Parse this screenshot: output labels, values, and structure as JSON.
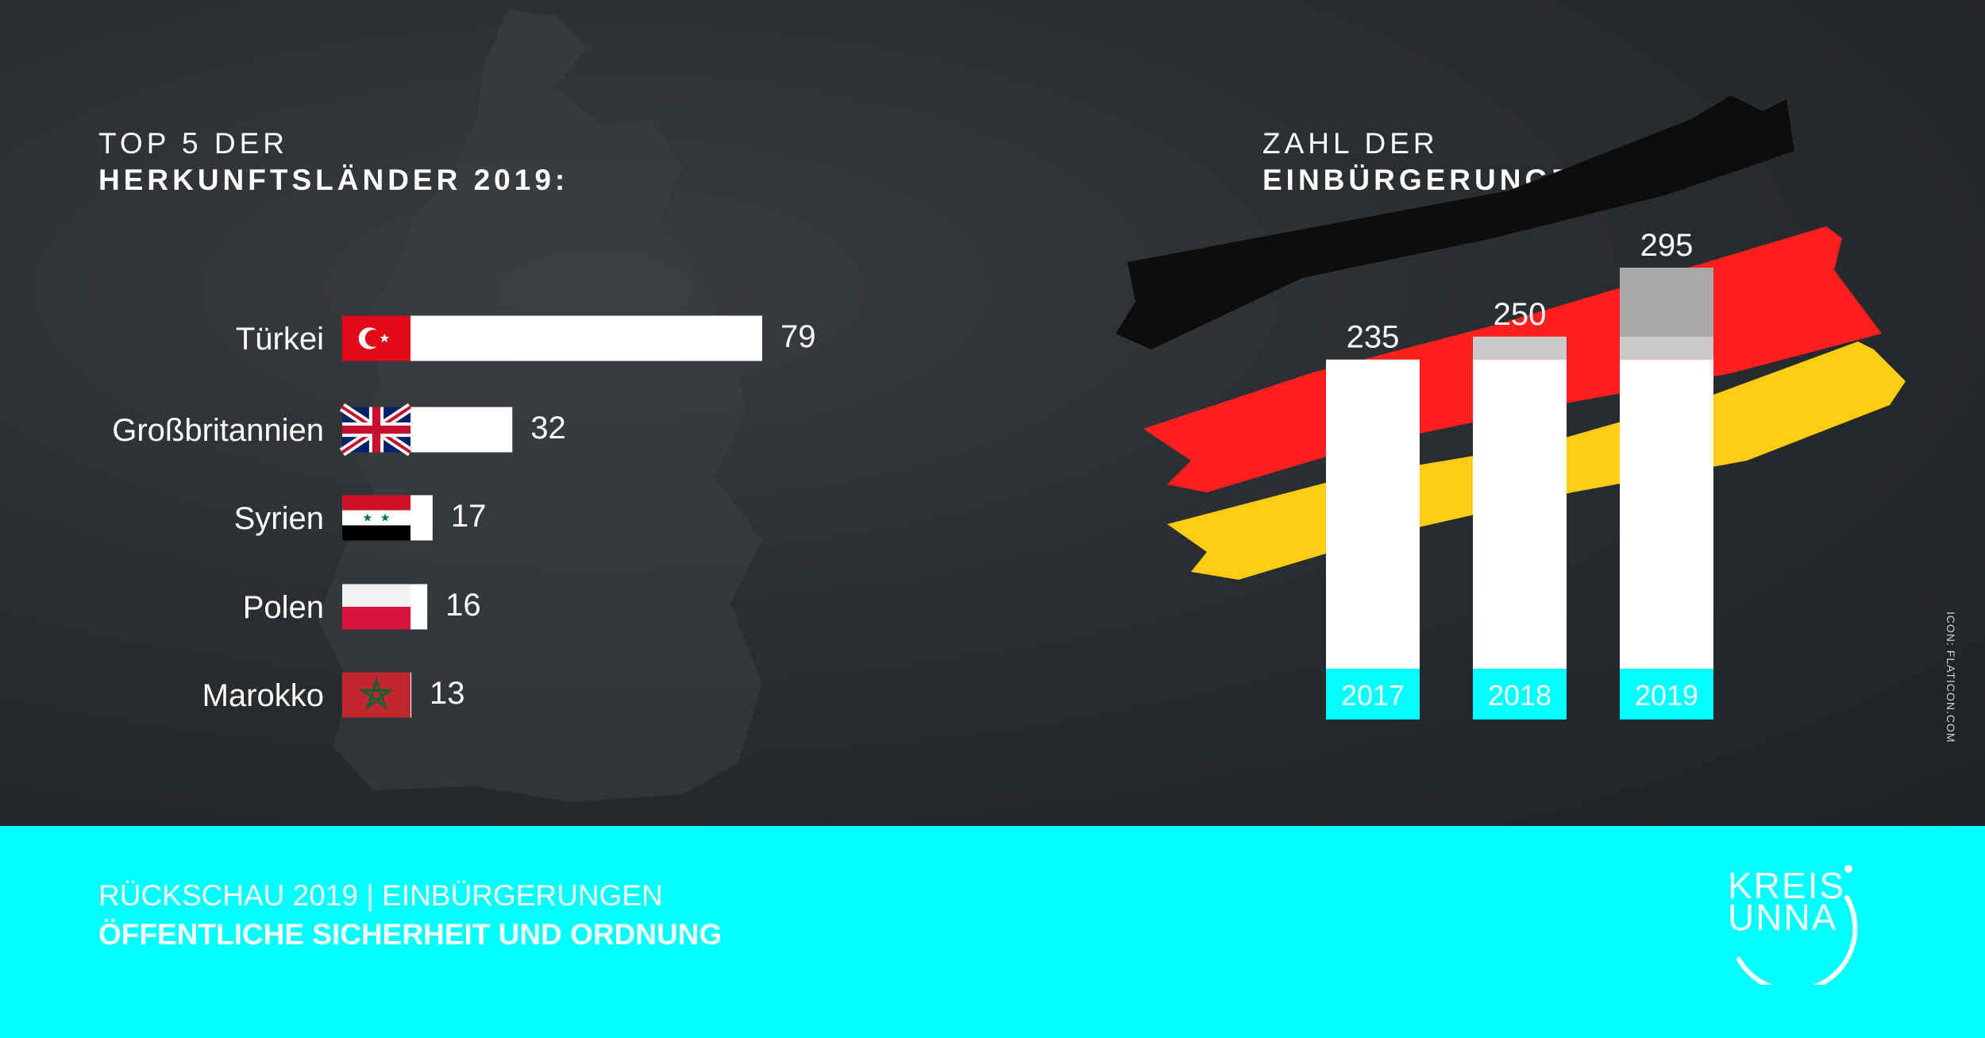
{
  "left_panel": {
    "heading_line1": "TOP 5 DER",
    "heading_line2": "HERKUNFTSLÄNDER 2019:"
  },
  "right_panel": {
    "heading_line1": "ZAHL DER",
    "heading_line2": "EINBÜRGERUNGEN:"
  },
  "footer": {
    "line1": "RÜCKSCHAU 2019 | EINBÜRGERUNGEN",
    "line2": "ÖFFENTLICHE SICHERHEIT UND ORDNUNG",
    "logo_line1": "KREIS",
    "logo_line2": "UNNA"
  },
  "credit": "ICON: FLATICON.COM",
  "colors": {
    "accent": "#00ffff",
    "background": "#2b2e31",
    "bar": "#ffffff",
    "flag_black": "#0d0d0d",
    "flag_red": "#ff1f1f",
    "flag_gold": "#ffcc14",
    "column_mid": "#c9c9c9",
    "column_top": "#a9a9a9"
  },
  "chart_data": [
    {
      "type": "bar",
      "orientation": "horizontal",
      "categories": [
        "Türkei",
        "Großbritannien",
        "Syrien",
        "Polen",
        "Marokko"
      ],
      "flag_icons": [
        "turkey-flag-icon",
        "uk-flag-icon",
        "syria-flag-icon",
        "poland-flag-icon",
        "morocco-flag-icon"
      ],
      "values": [
        79,
        32,
        17,
        16,
        13
      ],
      "title": "TOP 5 DER HERKUNFTSLÄNDER 2019:"
    },
    {
      "type": "bar",
      "orientation": "vertical",
      "categories": [
        "2017",
        "2018",
        "2019"
      ],
      "values": [
        235,
        250,
        295
      ],
      "title": "ZAHL DER EINBÜRGERUNGEN:"
    }
  ]
}
